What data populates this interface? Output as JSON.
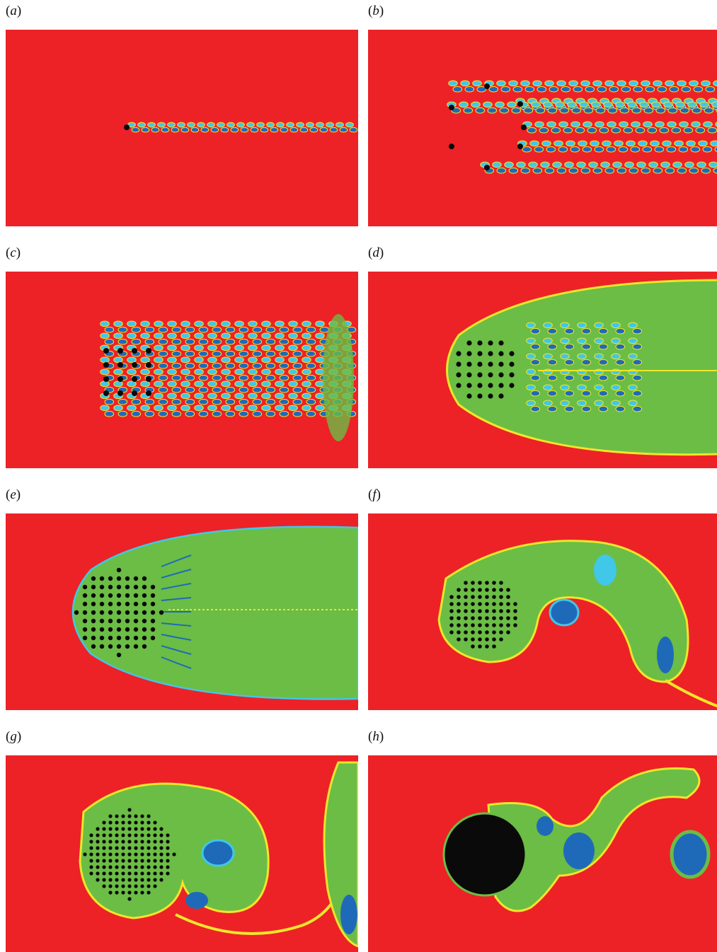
{
  "panels": [
    {
      "id": "a",
      "label_open": "(",
      "label_letter": "a",
      "label_close": ")"
    },
    {
      "id": "b",
      "label_open": "(",
      "label_letter": "b",
      "label_close": ")"
    },
    {
      "id": "c",
      "label_open": "(",
      "label_letter": "c",
      "label_close": ")"
    },
    {
      "id": "d",
      "label_open": "(",
      "label_letter": "d",
      "label_close": ")"
    },
    {
      "id": "e",
      "label_open": "(",
      "label_letter": "e",
      "label_close": ")"
    },
    {
      "id": "f",
      "label_open": "(",
      "label_letter": "f",
      "label_close": ")"
    },
    {
      "id": "g",
      "label_open": "(",
      "label_letter": "g",
      "label_close": ")"
    },
    {
      "id": "h",
      "label_open": "(",
      "label_letter": "h",
      "label_close": ")"
    }
  ],
  "colors": {
    "background_red": "#ec2227",
    "wake_green": "#6bbd45",
    "vortex_blue": "#1f6ab8",
    "vortex_cyan": "#41c7e8",
    "shear_yellow": "#f2e52a",
    "cylinder_black": "#0a0a0a"
  }
}
